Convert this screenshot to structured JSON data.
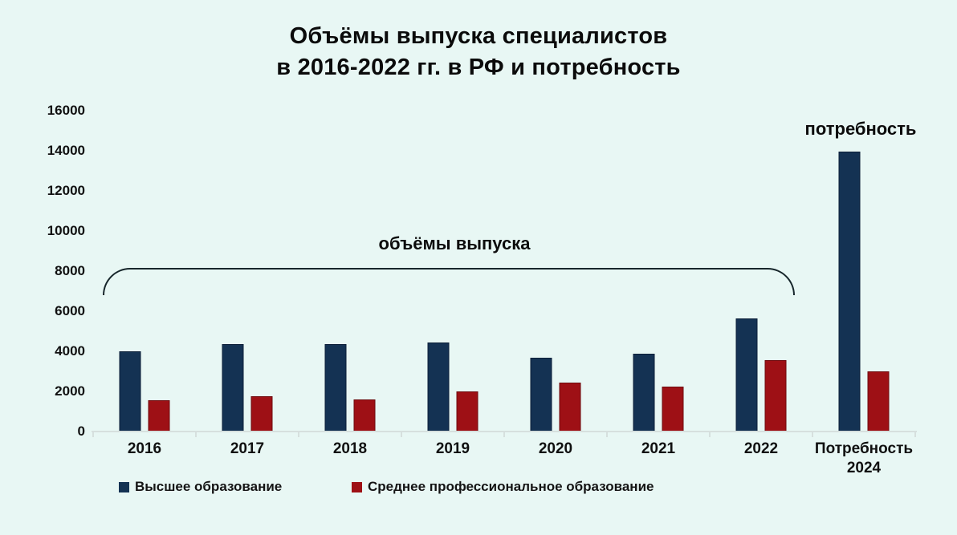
{
  "title": {
    "line1": "Объёмы выпуска специалистов",
    "line2": "в 2016-2022 гг. в РФ и потребность"
  },
  "chart_data": {
    "type": "bar",
    "title": "Объёмы выпуска специалистов в 2016-2022 гг. в РФ и потребность",
    "categories": [
      "2016",
      "2017",
      "2018",
      "2019",
      "2020",
      "2021",
      "2022",
      "Потребность\n2024"
    ],
    "series": [
      {
        "name": "Высшее образование",
        "color": "#143253",
        "border_color": "#0c1f38",
        "values": [
          4000,
          4350,
          4350,
          4450,
          3700,
          3900,
          5650,
          13950
        ]
      },
      {
        "name": "Среднее профессиональное образование",
        "color": "#9e1015",
        "border_color": "#6e0b0e",
        "values": [
          1550,
          1750,
          1600,
          2000,
          2450,
          2250,
          3550,
          3000
        ]
      }
    ],
    "ylim": [
      0,
      16000
    ],
    "yticks": [
      0,
      2000,
      4000,
      6000,
      8000,
      10000,
      12000,
      14000,
      16000
    ],
    "grid": false,
    "legend_position": "bottom",
    "annotations": [
      {
        "text": "объёмы выпуска",
        "note": "bracket spanning 2016-2022"
      },
      {
        "text": "потребность",
        "note": "above Потребность 2024 bar"
      }
    ]
  },
  "colors": {
    "background": "#e8f7f4",
    "axis_line": "#d6e0de",
    "text": "#0e0e0e",
    "bracket": "#17262b"
  }
}
